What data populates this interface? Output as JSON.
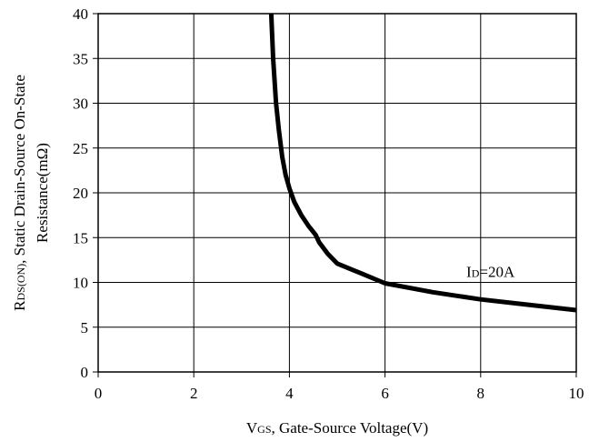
{
  "chart_data": {
    "type": "line",
    "title": "",
    "xlabel": "VGS, Gate-Source Voltage(V)",
    "xlabel_parts": {
      "sym_main": "V",
      "sym_sub": "GS",
      "rest": ", Gate-Source Voltage(V)"
    },
    "ylabel_line1": "RDS(ON), Static Drain-Source On-State",
    "ylabel_line1_parts": {
      "sym_main": "R",
      "sym_sub": "DS(ON)",
      "rest": ", Static Drain-Source On-State"
    },
    "ylabel_line2": "Resistance(mΩ)",
    "xlim": [
      0,
      10
    ],
    "ylim": [
      0,
      40
    ],
    "xticks": [
      0,
      2,
      4,
      6,
      8,
      10
    ],
    "yticks": [
      0,
      5,
      10,
      15,
      20,
      25,
      30,
      35,
      40
    ],
    "grid": true,
    "series": [
      {
        "x": [
          3.62,
          3.66,
          3.72,
          3.78,
          3.85,
          3.92,
          4.0,
          4.1,
          4.25,
          4.4,
          4.55,
          4.62,
          4.8,
          5.0,
          5.5,
          6.0,
          7.0,
          8.0,
          9.0,
          10.0
        ],
        "y": [
          40,
          35,
          30,
          27,
          24,
          22,
          20.5,
          19,
          17.5,
          16.3,
          15.3,
          14.5,
          13.2,
          12.1,
          11.0,
          9.9,
          8.9,
          8.1,
          7.5,
          6.9
        ]
      }
    ],
    "annotations": [
      {
        "text": "ID=20A",
        "parts": {
          "sym_main": "I",
          "sym_sub": "D",
          "rest": "=20A"
        },
        "x": 7.7,
        "y": 11.2
      }
    ]
  }
}
